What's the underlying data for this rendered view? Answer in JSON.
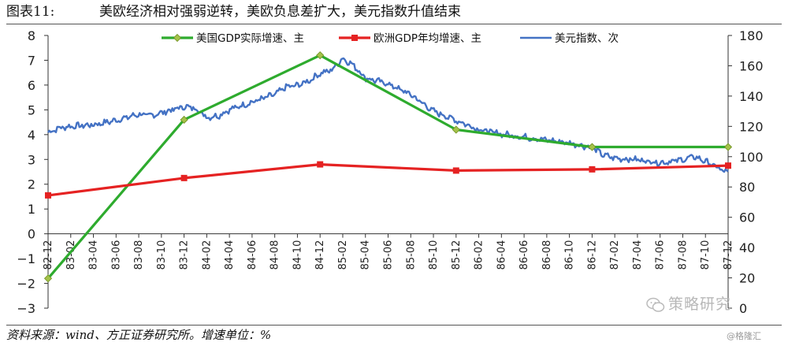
{
  "figure": {
    "label": "图表11:",
    "title": "美欧经济相对强弱逆转，美欧负息差扩大，美元指数升值结束"
  },
  "source_note": "资料来源：wind、方正证券研究所。增速单位：%",
  "watermark": "策略研究",
  "credit": "@格隆汇",
  "chart_data": {
    "type": "line",
    "x_categories": [
      "82-12",
      "83-02",
      "83-04",
      "83-06",
      "83-08",
      "83-10",
      "83-12",
      "84-02",
      "84-04",
      "84-06",
      "84-08",
      "84-10",
      "84-12",
      "85-02",
      "85-04",
      "85-06",
      "85-08",
      "85-10",
      "85-12",
      "86-02",
      "86-04",
      "86-06",
      "86-08",
      "86-10",
      "86-12",
      "87-02",
      "87-04",
      "87-06",
      "87-08",
      "87-10",
      "87-12"
    ],
    "y_left": {
      "min": -3,
      "max": 8,
      "ticks": [
        "-3",
        "-2",
        "-1",
        "0",
        "1",
        "2",
        "3",
        "4",
        "5",
        "6",
        "7",
        "8"
      ]
    },
    "y_right": {
      "min": 0,
      "max": 180,
      "ticks": [
        "0",
        "20",
        "40",
        "60",
        "80",
        "100",
        "120",
        "140",
        "160",
        "180"
      ]
    },
    "legend": {
      "position": "top"
    },
    "grid": false,
    "series": [
      {
        "name": "美国GDP实际增速、主",
        "axis": "left",
        "color": "#2eab2e",
        "marker": "diamond",
        "x": [
          "82-12",
          "83-12",
          "84-12",
          "85-12",
          "86-12",
          "87-12"
        ],
        "values": [
          -1.8,
          4.6,
          7.2,
          4.2,
          3.5,
          3.5
        ]
      },
      {
        "name": "欧洲GDP年均增速、主",
        "axis": "left",
        "color": "#e52222",
        "marker": "square",
        "x": [
          "82-12",
          "83-12",
          "84-12",
          "85-12",
          "86-12",
          "87-12"
        ],
        "values": [
          1.55,
          2.25,
          2.8,
          2.55,
          2.6,
          2.75
        ]
      },
      {
        "name": "美元指数、次",
        "axis": "right",
        "color": "#4472c4",
        "marker": "none",
        "anchors": [
          [
            "82-12",
            116
          ],
          [
            "83-01",
            119
          ],
          [
            "83-02",
            120
          ],
          [
            "83-04",
            121
          ],
          [
            "83-06",
            124
          ],
          [
            "83-08",
            128
          ],
          [
            "83-09",
            127
          ],
          [
            "83-10",
            129
          ],
          [
            "83-12",
            133
          ],
          [
            "84-01",
            132
          ],
          [
            "84-02",
            126
          ],
          [
            "84-03",
            127
          ],
          [
            "84-04",
            131
          ],
          [
            "84-06",
            136
          ],
          [
            "84-08",
            141
          ],
          [
            "84-09",
            146
          ],
          [
            "84-10",
            147
          ],
          [
            "84-11",
            150
          ],
          [
            "84-12",
            155
          ],
          [
            "85-01",
            157
          ],
          [
            "85-02",
            165
          ],
          [
            "85-03",
            160
          ],
          [
            "85-04",
            152
          ],
          [
            "85-06",
            148
          ],
          [
            "85-08",
            141
          ],
          [
            "85-10",
            130
          ],
          [
            "85-12",
            124
          ],
          [
            "86-02",
            118
          ],
          [
            "86-04",
            115
          ],
          [
            "86-06",
            113
          ],
          [
            "86-08",
            111
          ],
          [
            "86-10",
            109
          ],
          [
            "86-12",
            106
          ],
          [
            "87-01",
            101
          ],
          [
            "87-02",
            99
          ],
          [
            "87-04",
            98
          ],
          [
            "87-06",
            96
          ],
          [
            "87-08",
            98
          ],
          [
            "87-09",
            100
          ],
          [
            "87-10",
            97
          ],
          [
            "87-11",
            93
          ],
          [
            "87-12",
            89
          ]
        ]
      }
    ]
  }
}
